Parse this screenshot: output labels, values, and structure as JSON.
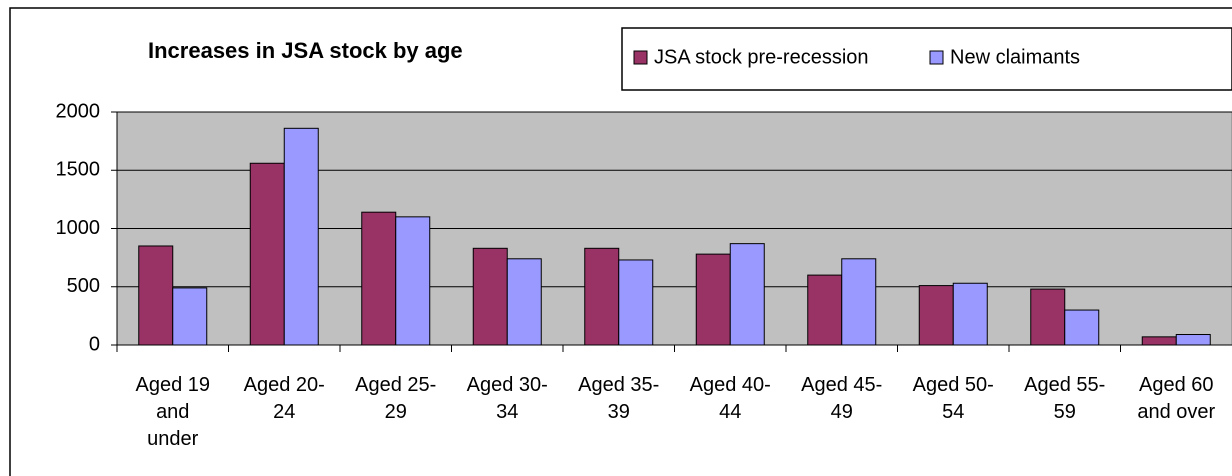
{
  "chart_data": {
    "type": "bar",
    "title": "Increases in JSA stock by age",
    "categories": [
      "Aged 19 and under",
      "Aged 20-24",
      "Aged 25-29",
      "Aged 30-34",
      "Aged 35-39",
      "Aged 40-44",
      "Aged 45-49",
      "Aged 50-54",
      "Aged 55-59",
      "Aged 60 and over"
    ],
    "series": [
      {
        "name": "JSA stock pre-recession",
        "color": "#993366",
        "values": [
          850,
          1560,
          1140,
          830,
          830,
          780,
          600,
          510,
          480,
          70
        ]
      },
      {
        "name": "New claimants",
        "color": "#9999ff",
        "values": [
          490,
          1860,
          1100,
          740,
          730,
          870,
          740,
          530,
          300,
          90
        ]
      }
    ],
    "ylim": [
      0,
      2000
    ],
    "yticks": [
      0,
      500,
      1000,
      1500,
      2000
    ],
    "grid": true,
    "legend": "top-right"
  }
}
